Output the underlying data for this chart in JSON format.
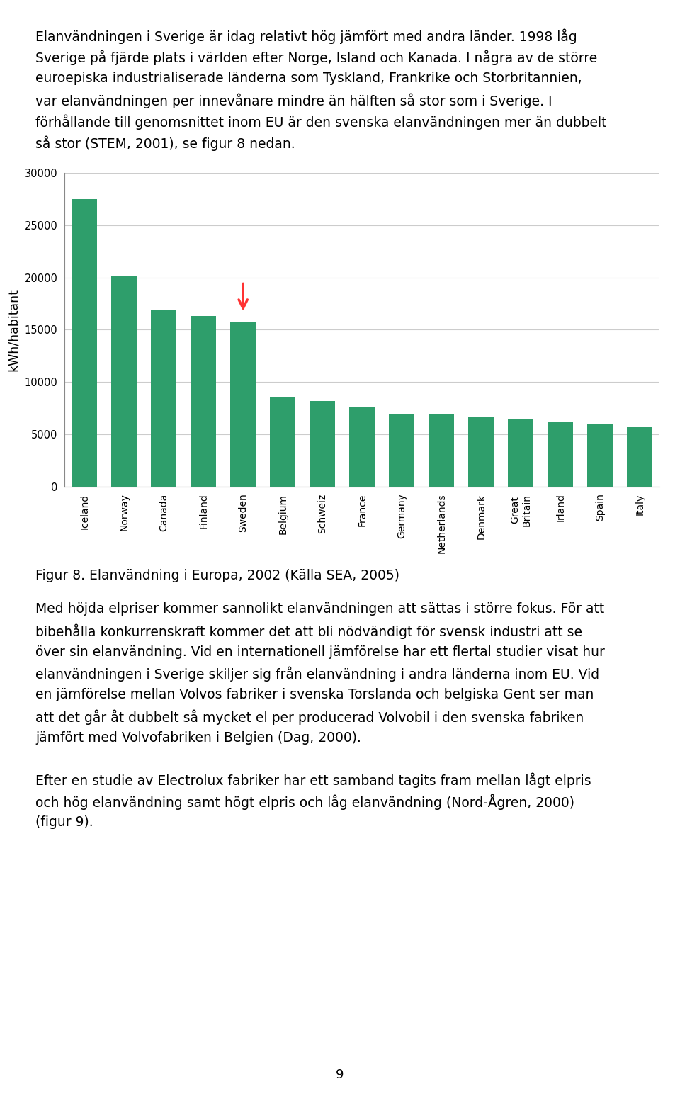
{
  "categories": [
    "Iceland",
    "Norway",
    "Canada",
    "Finland",
    "Sweden",
    "Belgium",
    "Schweiz",
    "France",
    "Germany",
    "Netherlands",
    "Denmark",
    "Great\nBritain",
    "Irland",
    "Spain",
    "Italy"
  ],
  "values": [
    27500,
    20200,
    16900,
    16300,
    15800,
    8500,
    8200,
    7600,
    7000,
    7000,
    6700,
    6400,
    6200,
    6000,
    5700
  ],
  "bar_color": "#2E9E6B",
  "arrow_index": 4,
  "arrow_color": "#FF3333",
  "ylabel": "kWh/habitant",
  "ylim": [
    0,
    30000
  ],
  "yticks": [
    0,
    5000,
    10000,
    15000,
    20000,
    25000,
    30000
  ],
  "figcaption": "Figur 8. Elanvändning i Europa, 2002 (Källa SEA, 2005)",
  "page_number": "9",
  "text_fontsize": 13.5,
  "caption_fontsize": 13.5,
  "background_color": "#ffffff",
  "grid_color": "#cccccc",
  "para1_lines": [
    "Elanvändningen i Sverige är idag relativt hög jämfört med andra länder. 1998 låg",
    "Sverige på fjärde plats i världen efter Norge, Island och Kanada. I några av de större",
    "euroepiska industrialiserade länderna som Tyskland, Frankrike och Storbritannien,",
    "var elanvändningen per innevånare mindre än hälften så stor som i Sverige. I",
    "förhållande till genomsnittet inom EU är den svenska elanvändningen mer än dubbelt",
    "så stor (STEM, 2001), se figur 8 nedan."
  ],
  "para2_lines": [
    "Med höjda elpriser kommer sannolikt elanvändningen att sättas i större fokus. För att",
    "bibehålla konkurrenskraft kommer det att bli nödvändigt för svensk industri att se",
    "över sin elanvändning. Vid en internationell jämförelse har ett flertal studier visat hur",
    "elanvändningen i Sverige skiljer sig från elanvändning i andra länderna inom EU. Vid",
    "en jämförelse mellan Volvos fabriker i svenska Torslanda och belgiska Gent ser man",
    "att det går åt dubbelt så mycket el per producerad Volvobil i den svenska fabriken",
    "jämfört med Volvofabriken i Belgien (Dag, 2000)."
  ],
  "para3_lines": [
    "Efter en studie av Electrolux fabriker har ett samband tagits fram mellan lågt elpris",
    "och hög elanvändning samt högt elpris och låg elanvändning (Nord-Ågren, 2000)",
    "(figur 9)."
  ]
}
